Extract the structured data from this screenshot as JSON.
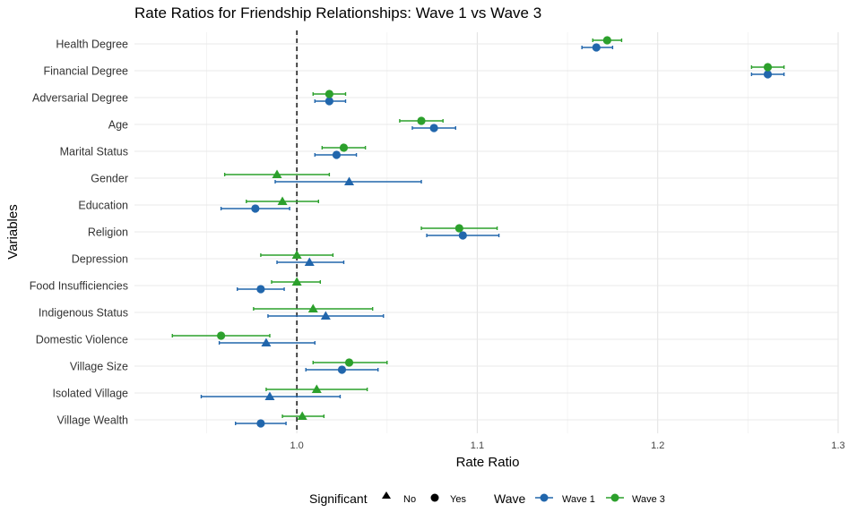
{
  "chart_data": {
    "type": "forest",
    "title": "Rate Ratios for Friendship Relationships: Wave 1 vs Wave 3",
    "xlabel": "Rate Ratio",
    "ylabel": "Variables",
    "xlim": [
      0.91,
      1.3
    ],
    "xticks": [
      {
        "value": 1.0,
        "label": "1.0"
      },
      {
        "value": 1.1,
        "label": "1.1"
      },
      {
        "value": 1.2,
        "label": "1.2"
      },
      {
        "value": 1.3,
        "label": "1.3"
      }
    ],
    "reference_line": 1.0,
    "categories": [
      "Health Degree",
      "Financial Degree",
      "Adversarial Degree",
      "Age",
      "Marital Status",
      "Gender",
      "Education",
      "Religion",
      "Depression",
      "Food Insufficiencies",
      "Indigenous Status",
      "Domestic Violence",
      "Village Size",
      "Isolated Village",
      "Village Wealth"
    ],
    "series": [
      {
        "name": "Wave 1",
        "color": "#2166ac",
        "points": [
          {
            "estimate": 1.166,
            "lower": 1.158,
            "upper": 1.175,
            "significant": "Yes"
          },
          {
            "estimate": 1.261,
            "lower": 1.252,
            "upper": 1.27,
            "significant": "Yes"
          },
          {
            "estimate": 1.018,
            "lower": 1.01,
            "upper": 1.027,
            "significant": "Yes"
          },
          {
            "estimate": 1.076,
            "lower": 1.064,
            "upper": 1.088,
            "significant": "Yes"
          },
          {
            "estimate": 1.022,
            "lower": 1.01,
            "upper": 1.033,
            "significant": "Yes"
          },
          {
            "estimate": 1.029,
            "lower": 0.988,
            "upper": 1.069,
            "significant": "No"
          },
          {
            "estimate": 0.977,
            "lower": 0.958,
            "upper": 0.996,
            "significant": "Yes"
          },
          {
            "estimate": 1.092,
            "lower": 1.072,
            "upper": 1.112,
            "significant": "Yes"
          },
          {
            "estimate": 1.007,
            "lower": 0.989,
            "upper": 1.026,
            "significant": "No"
          },
          {
            "estimate": 0.98,
            "lower": 0.967,
            "upper": 0.993,
            "significant": "Yes"
          },
          {
            "estimate": 1.016,
            "lower": 0.984,
            "upper": 1.048,
            "significant": "No"
          },
          {
            "estimate": 0.983,
            "lower": 0.957,
            "upper": 1.01,
            "significant": "No"
          },
          {
            "estimate": 1.025,
            "lower": 1.005,
            "upper": 1.045,
            "significant": "Yes"
          },
          {
            "estimate": 0.985,
            "lower": 0.947,
            "upper": 1.024,
            "significant": "No"
          },
          {
            "estimate": 0.98,
            "lower": 0.966,
            "upper": 0.994,
            "significant": "Yes"
          }
        ]
      },
      {
        "name": "Wave 3",
        "color": "#2ca02c",
        "points": [
          {
            "estimate": 1.172,
            "lower": 1.164,
            "upper": 1.18,
            "significant": "Yes"
          },
          {
            "estimate": 1.261,
            "lower": 1.252,
            "upper": 1.27,
            "significant": "Yes"
          },
          {
            "estimate": 1.018,
            "lower": 1.009,
            "upper": 1.027,
            "significant": "Yes"
          },
          {
            "estimate": 1.069,
            "lower": 1.057,
            "upper": 1.081,
            "significant": "Yes"
          },
          {
            "estimate": 1.026,
            "lower": 1.014,
            "upper": 1.038,
            "significant": "Yes"
          },
          {
            "estimate": 0.989,
            "lower": 0.96,
            "upper": 1.018,
            "significant": "No"
          },
          {
            "estimate": 0.992,
            "lower": 0.972,
            "upper": 1.012,
            "significant": "No"
          },
          {
            "estimate": 1.09,
            "lower": 1.069,
            "upper": 1.111,
            "significant": "Yes"
          },
          {
            "estimate": 1.0,
            "lower": 0.98,
            "upper": 1.02,
            "significant": "No"
          },
          {
            "estimate": 1.0,
            "lower": 0.986,
            "upper": 1.013,
            "significant": "No"
          },
          {
            "estimate": 1.009,
            "lower": 0.976,
            "upper": 1.042,
            "significant": "No"
          },
          {
            "estimate": 0.958,
            "lower": 0.931,
            "upper": 0.985,
            "significant": "Yes"
          },
          {
            "estimate": 1.029,
            "lower": 1.009,
            "upper": 1.05,
            "significant": "Yes"
          },
          {
            "estimate": 1.011,
            "lower": 0.983,
            "upper": 1.039,
            "significant": "No"
          },
          {
            "estimate": 1.003,
            "lower": 0.992,
            "upper": 1.015,
            "significant": "No"
          }
        ]
      }
    ],
    "legend": {
      "position": "bottom",
      "shape_title": "Significant",
      "shape_entries": [
        {
          "label": "No",
          "shape": "triangle"
        },
        {
          "label": "Yes",
          "shape": "circle"
        }
      ],
      "color_title": "Wave",
      "color_entries": [
        "Wave 1",
        "Wave 3"
      ]
    }
  }
}
